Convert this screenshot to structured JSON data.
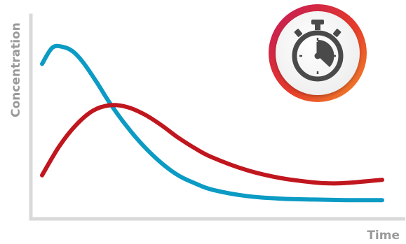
{
  "chart_data": {
    "type": "line",
    "title": "",
    "xlabel": "Time",
    "ylabel": "Concentration",
    "grid": false,
    "legend": "none",
    "axes_color": "#d9d9d9",
    "label_color": "#9a9a9a",
    "xlim": [
      0,
      10
    ],
    "ylim": [
      0,
      10
    ],
    "series": [
      {
        "color": "#0b9bc4",
        "x": [
          0.0,
          0.3,
          0.6,
          0.9,
          1.2,
          1.6,
          2.0,
          2.5,
          3.0,
          3.5,
          4.0,
          4.5,
          5.0,
          6.0,
          7.0,
          8.0,
          9.0,
          10.0
        ],
        "y": [
          8.0,
          8.9,
          8.95,
          8.7,
          8.1,
          7.0,
          5.8,
          4.5,
          3.4,
          2.5,
          1.8,
          1.35,
          1.0,
          0.65,
          0.5,
          0.45,
          0.42,
          0.42
        ]
      },
      {
        "color": "#c0161e",
        "x": [
          0.0,
          0.5,
          1.0,
          1.5,
          2.0,
          2.5,
          3.0,
          3.5,
          4.0,
          4.5,
          5.0,
          6.0,
          7.0,
          8.0,
          8.5,
          9.0,
          10.0
        ],
        "y": [
          1.8,
          3.4,
          4.6,
          5.4,
          5.7,
          5.6,
          5.2,
          4.6,
          3.9,
          3.3,
          2.8,
          2.1,
          1.65,
          1.4,
          1.35,
          1.38,
          1.55
        ]
      }
    ]
  },
  "badge": {
    "icon": "stopwatch-icon",
    "gradient": [
      "#c2185b",
      "#e63a2a",
      "#f28c28"
    ],
    "icon_color": "#4a4a4a"
  }
}
